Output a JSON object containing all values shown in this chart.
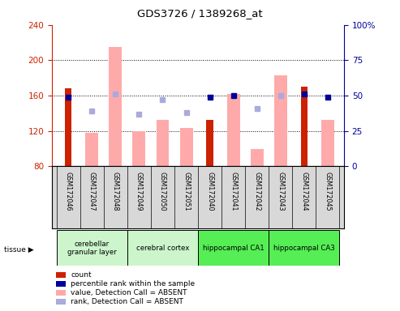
{
  "title": "GDS3726 / 1389268_at",
  "samples": [
    "GSM172046",
    "GSM172047",
    "GSM172048",
    "GSM172049",
    "GSM172050",
    "GSM172051",
    "GSM172040",
    "GSM172041",
    "GSM172042",
    "GSM172043",
    "GSM172044",
    "GSM172045"
  ],
  "count_values": [
    168,
    null,
    null,
    null,
    null,
    null,
    133,
    null,
    null,
    null,
    170,
    null
  ],
  "count_absent": [
    null,
    118,
    215,
    120,
    133,
    123,
    null,
    162,
    100,
    183,
    null,
    133
  ],
  "rank_present": [
    49,
    null,
    null,
    null,
    null,
    null,
    49,
    50,
    null,
    null,
    51,
    49
  ],
  "rank_absent": [
    null,
    39,
    51,
    37,
    47,
    38,
    null,
    null,
    41,
    50,
    null,
    null
  ],
  "ylim_left": [
    80,
    240
  ],
  "ylim_right": [
    0,
    100
  ],
  "left_ticks": [
    80,
    120,
    160,
    200,
    240
  ],
  "right_ticks": [
    0,
    25,
    50,
    75,
    100
  ],
  "right_tick_labels": [
    "0",
    "25",
    "50",
    "75",
    "100%"
  ],
  "tissue_groups": [
    {
      "label": "cerebellar\ngranular layer",
      "start": 0,
      "end": 3,
      "color": "#ccf5cc"
    },
    {
      "label": "cerebral cortex",
      "start": 3,
      "end": 6,
      "color": "#ccf5cc"
    },
    {
      "label": "hippocampal CA1",
      "start": 6,
      "end": 9,
      "color": "#55ee55"
    },
    {
      "label": "hippocampal CA3",
      "start": 9,
      "end": 12,
      "color": "#55ee55"
    }
  ],
  "count_color": "#cc2200",
  "rank_present_color": "#000099",
  "value_absent_color": "#ffaaaa",
  "rank_absent_color": "#aaaadd",
  "background_color": "#ffffff",
  "sample_box_color": "#d8d8d8",
  "legend_items": [
    {
      "label": "count",
      "color": "#cc2200"
    },
    {
      "label": "percentile rank within the sample",
      "color": "#000099"
    },
    {
      "label": "value, Detection Call = ABSENT",
      "color": "#ffaaaa"
    },
    {
      "label": "rank, Detection Call = ABSENT",
      "color": "#aaaadd"
    }
  ]
}
